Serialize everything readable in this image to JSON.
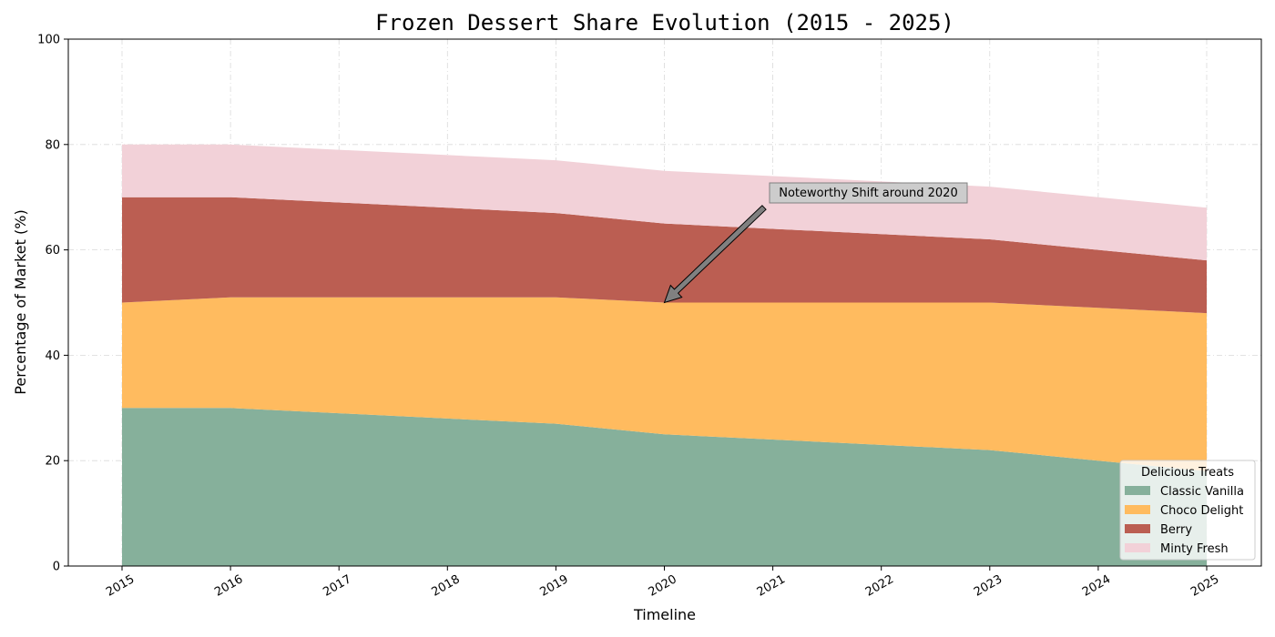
{
  "chart_data": {
    "type": "area",
    "title": "Frozen Dessert Share Evolution (2015 - 2025)",
    "xlabel": "Timeline",
    "ylabel": "Percentage of Market (%)",
    "x": [
      "2015",
      "2016",
      "2017",
      "2018",
      "2019",
      "2020",
      "2021",
      "2022",
      "2023",
      "2024",
      "2025"
    ],
    "ylim": [
      0,
      100
    ],
    "yticks": [
      0,
      20,
      40,
      60,
      80,
      100
    ],
    "stacked": true,
    "grid": true,
    "series": [
      {
        "name": "Classic Vanilla",
        "color": "#86b09b",
        "values": [
          30,
          30,
          29,
          28,
          27,
          25,
          24,
          23,
          22,
          20,
          18
        ]
      },
      {
        "name": "Choco Delight",
        "color": "#ffbb5f",
        "values": [
          20,
          21,
          22,
          23,
          24,
          25,
          26,
          27,
          28,
          29,
          30
        ]
      },
      {
        "name": "Berry",
        "color": "#bb5e52",
        "values": [
          20,
          19,
          18,
          17,
          16,
          15,
          14,
          13,
          12,
          11,
          10
        ]
      },
      {
        "name": "Minty Fresh",
        "color": "#f2d1d8",
        "values": [
          10,
          10,
          10,
          10,
          10,
          10,
          10,
          10,
          10,
          10,
          10
        ]
      }
    ],
    "legend": {
      "title": "Delicious Treats",
      "placement": "lower-right"
    },
    "annotations": [
      {
        "text": "Noteworthy Shift around 2020",
        "x": "2020",
        "y": 50
      }
    ]
  }
}
